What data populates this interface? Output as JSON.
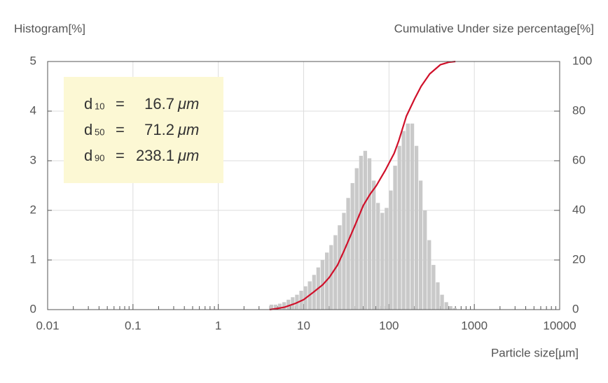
{
  "chart_data": {
    "type": "histogram",
    "y_label": "Histogram[%]",
    "y2_label": "Cumulative Under size percentage[%]",
    "x_label": "Particle size[µm]",
    "x_scale": "log",
    "xlim": [
      0.01,
      10000
    ],
    "xticks": [
      0.01,
      0.1,
      1,
      10,
      100,
      1000,
      10000
    ],
    "ylim": [
      0,
      5
    ],
    "yticks": [
      0,
      1,
      2,
      3,
      4,
      5
    ],
    "y2lim": [
      0,
      100
    ],
    "y2ticks": [
      0,
      20,
      40,
      60,
      80,
      100
    ],
    "grid": true,
    "minor_ticks": true,
    "bins": [
      3.98,
      4.47,
      5.01,
      5.62,
      6.31,
      7.08,
      7.94,
      8.91,
      10,
      11.2,
      12.6,
      14.1,
      15.8,
      17.8,
      20,
      22.4,
      25.1,
      28.2,
      31.6,
      35.5,
      39.8,
      44.7,
      50.1,
      56.2,
      63.1,
      70.8,
      79.4,
      89.1,
      100,
      112,
      126,
      141,
      158,
      178,
      200,
      224,
      251,
      282,
      316,
      355,
      398,
      447,
      501,
      562,
      631
    ],
    "series": [
      {
        "type": "histogram",
        "color": "#c9c9c9",
        "values": [
          0.1,
          0.1,
          0.12,
          0.15,
          0.2,
          0.25,
          0.3,
          0.38,
          0.47,
          0.57,
          0.7,
          0.85,
          1.0,
          1.15,
          1.3,
          1.5,
          1.7,
          1.95,
          2.25,
          2.55,
          2.85,
          3.1,
          3.2,
          3.05,
          2.6,
          2.15,
          1.95,
          2.05,
          2.4,
          2.9,
          3.3,
          3.6,
          3.75,
          3.75,
          3.3,
          2.6,
          2.0,
          1.4,
          0.9,
          0.55,
          0.3,
          0.15,
          0.07,
          0.03
        ]
      },
      {
        "type": "line",
        "axis": "y2",
        "color": "#d0102a",
        "x": [
          4,
          5,
          6,
          8,
          10,
          13,
          16.7,
          20,
          25,
          30,
          40,
          50,
          60,
          71.2,
          80,
          90,
          100,
          115,
          130,
          160,
          200,
          238,
          300,
          400,
          500,
          600
        ],
        "values": [
          0,
          0.5,
          1,
          2.5,
          4,
          7,
          10,
          13,
          18,
          24,
          34,
          42,
          46.5,
          50,
          53,
          56,
          59,
          63,
          68,
          78,
          85,
          90,
          95,
          98.7,
          99.7,
          100
        ]
      }
    ],
    "annotations": [
      {
        "symbol": "d",
        "subscript": "10",
        "operator": "=",
        "value": 16.7,
        "unit": "μm"
      },
      {
        "symbol": "d",
        "subscript": "50",
        "operator": "=",
        "value": 71.2,
        "unit": "μm"
      },
      {
        "symbol": "d",
        "subscript": "90",
        "operator": "=",
        "value": 238.1,
        "unit": "μm"
      }
    ]
  }
}
